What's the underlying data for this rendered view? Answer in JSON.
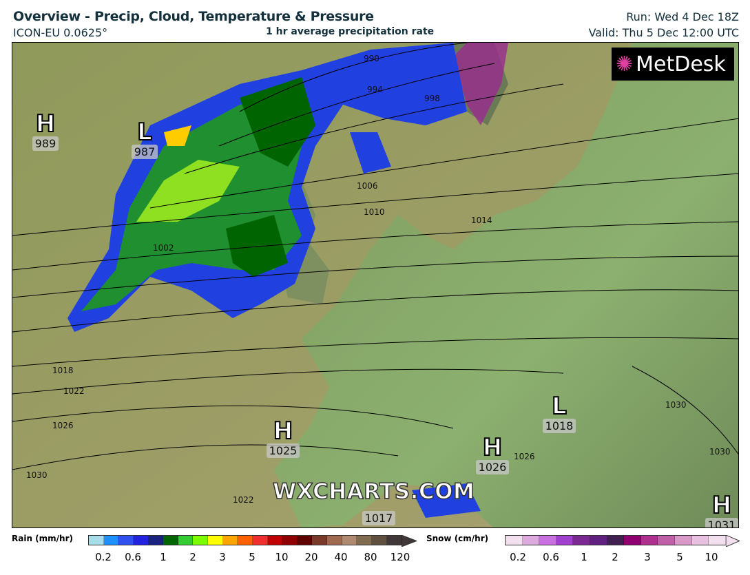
{
  "header": {
    "title": "Overview - Precip, Cloud, Temperature & Pressure",
    "model": "ICON-EU 0.0625°",
    "subtitle": "1 hr average precipitation rate",
    "run": "Run: Wed 4 Dec 18Z",
    "valid": "Valid: Thu 5 Dec 12:00 UTC"
  },
  "map": {
    "logo": "MetDesk",
    "watermark": "WXCHARTS.COM",
    "pressure_centers": [
      {
        "type": "H",
        "value": "989"
      },
      {
        "type": "L",
        "value": "987"
      },
      {
        "type": "H",
        "value": "1025"
      },
      {
        "type": "L",
        "value": "1018"
      },
      {
        "type": "H",
        "value": "1026"
      },
      {
        "type": "H",
        "value": "1031"
      },
      {
        "type": "",
        "value": "1017"
      }
    ],
    "isobar_labels": [
      "990",
      "994",
      "998",
      "1006",
      "1010",
      "1014",
      "1002",
      "1018",
      "1022",
      "1026",
      "1030",
      "1022",
      "1026",
      "1030",
      "1030"
    ],
    "colors": {
      "sea": "#9a9a5a",
      "land": "#86a064",
      "isobar": "#000000"
    }
  },
  "legend": {
    "rain": {
      "label": "Rain (mm/hr)",
      "ticks": [
        "0.2",
        "0.6",
        "1",
        "2",
        "3",
        "5",
        "10",
        "20",
        "40",
        "80",
        "120"
      ],
      "colors": [
        "#a8dce8",
        "#1e90ff",
        "#3050f0",
        "#2222e0",
        "#1a237e",
        "#006400",
        "#32cd32",
        "#7cfc00",
        "#ffff00",
        "#ffa500",
        "#ff6000",
        "#f03030",
        "#c00000",
        "#900000",
        "#600000",
        "#7a3a2a",
        "#a06a50",
        "#b08a70",
        "#806a50",
        "#605040",
        "#403838"
      ]
    },
    "snow": {
      "label": "Snow (cm/hr)",
      "ticks": [
        "0.2",
        "0.6",
        "1",
        "2",
        "3",
        "5",
        "10"
      ],
      "colors": [
        "#f3e0ef",
        "#dcaadc",
        "#c870e0",
        "#a040d0",
        "#7a2a90",
        "#602080",
        "#402050",
        "#900070",
        "#b03090",
        "#c060a8",
        "#d898c8",
        "#e8c0e0",
        "#f3e0ef"
      ]
    }
  }
}
